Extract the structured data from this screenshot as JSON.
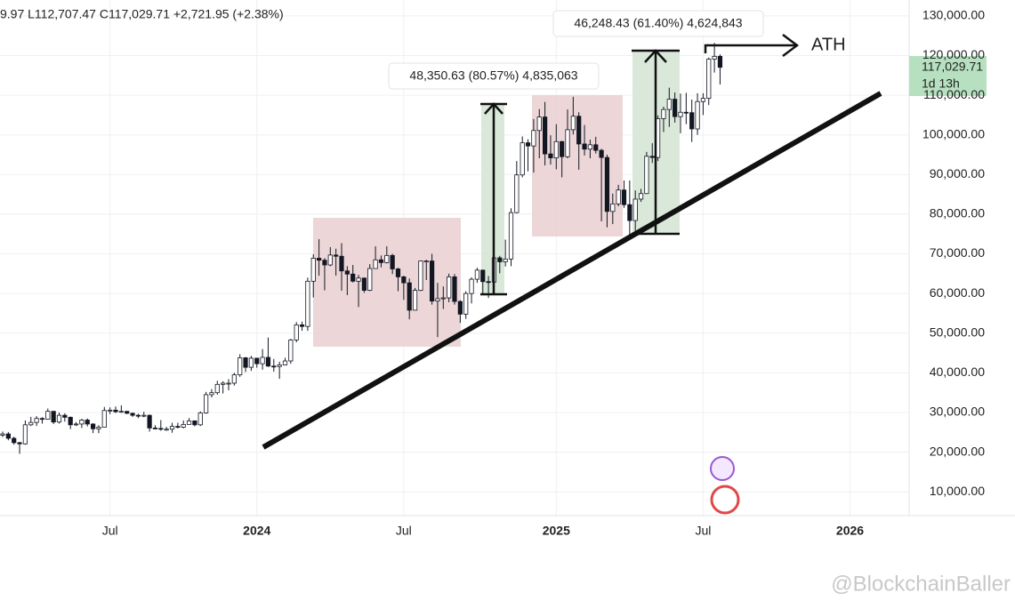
{
  "chart_data": {
    "type": "candlestick",
    "header": "9.97 L112,707.47 C117,029.71 +2,721.95 (+2.38%)",
    "categories": [
      null,
      null,
      null,
      null,
      null,
      null,
      null,
      null,
      null,
      null,
      null,
      null,
      null,
      null,
      null,
      null,
      null,
      null,
      null,
      "Jul",
      null,
      null,
      null,
      null,
      null,
      null,
      null,
      null,
      null,
      null,
      null,
      null,
      null,
      null,
      null,
      null,
      null,
      null,
      null,
      null,
      null,
      null,
      null,
      null,
      null,
      "2024",
      null,
      null,
      null,
      null,
      null,
      null,
      null,
      null,
      null,
      null,
      null,
      null,
      null,
      null,
      null,
      null,
      null,
      null,
      null,
      null,
      null,
      null,
      null,
      null,
      null,
      "Jul",
      null,
      null,
      null,
      null,
      null,
      null,
      null,
      null,
      null,
      null,
      null,
      null,
      null,
      null,
      null,
      null,
      null,
      null,
      null,
      null,
      null,
      null,
      null,
      null,
      null,
      null,
      "2025",
      null,
      null,
      null,
      null,
      null,
      null,
      null,
      null,
      null,
      null,
      null,
      null,
      null,
      null,
      null,
      null,
      null,
      null,
      null,
      null,
      null,
      null,
      null,
      null,
      null,
      "Jul",
      null,
      null,
      null,
      null,
      null,
      null,
      null,
      null,
      null,
      null,
      null,
      null,
      null,
      null,
      null,
      null,
      null,
      null,
      null,
      null,
      null,
      null,
      null,
      null,
      null,
      "2026",
      null,
      null,
      null,
      null,
      null,
      null,
      null,
      null,
      null,
      null
    ],
    "open": [
      24300,
      24600,
      23500,
      22400,
      22100,
      26900,
      27500,
      28500,
      28300,
      30300,
      27600,
      29300,
      28800,
      26900,
      27100,
      28100,
      27100,
      25900,
      26300,
      30500,
      30600,
      30200,
      30300,
      29800,
      29300,
      29100,
      29300,
      26100,
      26000,
      25800,
      25800,
      26500,
      26300,
      27000,
      27900,
      26900,
      29900,
      34500,
      35000,
      37100,
      37400,
      37400,
      39500,
      43800,
      41400,
      43700,
      42300,
      43900,
      41700,
      41600,
      42000,
      43000,
      48300,
      52100,
      51700,
      63100,
      68900,
      68400,
      67200,
      69700,
      69400,
      65700,
      64900,
      63100,
      63900,
      60800,
      66300,
      68500,
      67800,
      69600,
      66200,
      64200,
      62700,
      55800,
      60800,
      68200,
      68200,
      58100,
      58700,
      58900,
      64200,
      58000,
      54800,
      60000,
      63600,
      65900,
      63000,
      62900,
      69000,
      68000,
      68700,
      80400,
      89900,
      98000,
      97200,
      101100,
      104500,
      95200,
      94200,
      98300,
      94500,
      101300,
      104700,
      97700,
      96400,
      97500,
      96100,
      94300,
      80700,
      82600,
      86100,
      82400,
      78400,
      83800,
      85200,
      94600,
      94300,
      104100,
      106400,
      109000,
      104600,
      105700,
      105600,
      101500,
      108400,
      109200,
      119100,
      119800,
      null,
      null,
      null,
      null,
      null,
      null,
      null,
      null,
      null,
      null,
      null,
      null,
      null,
      null,
      null,
      null,
      null,
      null,
      null,
      null,
      null,
      null,
      null,
      null,
      null,
      null,
      null,
      null,
      null,
      null,
      null,
      null,
      null
    ],
    "high": [
      25200,
      25100,
      23900,
      22600,
      28000,
      28900,
      29100,
      28800,
      31000,
      30400,
      30000,
      29800,
      29000,
      27600,
      28400,
      28500,
      27300,
      26800,
      31400,
      31300,
      31500,
      31800,
      30400,
      30000,
      29700,
      30200,
      29500,
      26800,
      28100,
      26400,
      27400,
      27400,
      28000,
      28600,
      28000,
      30300,
      35200,
      35900,
      38000,
      37900,
      38400,
      40000,
      44700,
      44000,
      44300,
      43700,
      46000,
      48900,
      43500,
      42800,
      43800,
      48600,
      52800,
      52900,
      64000,
      69900,
      73700,
      68900,
      71700,
      71300,
      72700,
      66900,
      67200,
      64700,
      64000,
      67400,
      71900,
      69600,
      71900,
      70000,
      66500,
      64500,
      63800,
      61400,
      68300,
      68500,
      70000,
      62700,
      61800,
      65000,
      64900,
      58300,
      60600,
      64100,
      66500,
      66000,
      64400,
      69500,
      69500,
      73600,
      81500,
      93400,
      99600,
      98900,
      104000,
      106500,
      108300,
      99900,
      102700,
      98500,
      106400,
      109600,
      105700,
      102500,
      98800,
      99500,
      96500,
      95000,
      85200,
      87400,
      88500,
      88500,
      86000,
      86400,
      95700,
      97900,
      104900,
      107100,
      111900,
      110700,
      110400,
      110600,
      108900,
      110500,
      110500,
      119500,
      123200,
      120300,
      null,
      null,
      null,
      null,
      null,
      null,
      null,
      null,
      null,
      null,
      null,
      null,
      null,
      null,
      null,
      null,
      null,
      null,
      null,
      null,
      null,
      null,
      null,
      null,
      null,
      null,
      null,
      null,
      null,
      null,
      null,
      null,
      null
    ],
    "low": [
      23800,
      23000,
      21900,
      19600,
      21900,
      26600,
      26600,
      27200,
      28200,
      27100,
      27200,
      27700,
      25800,
      26600,
      26100,
      26500,
      24800,
      24800,
      26300,
      29600,
      29900,
      29900,
      29600,
      28900,
      28600,
      28800,
      25200,
      25800,
      25400,
      25400,
      24900,
      26000,
      26000,
      27000,
      26500,
      26600,
      29700,
      33800,
      34500,
      34800,
      35600,
      36800,
      39000,
      40200,
      40500,
      41300,
      40800,
      41500,
      40300,
      38500,
      41900,
      42300,
      47700,
      50600,
      50600,
      59000,
      64500,
      60800,
      66900,
      64500,
      60700,
      59600,
      62800,
      56600,
      60200,
      60600,
      66300,
      66600,
      67600,
      64900,
      60600,
      58400,
      53500,
      56000,
      60600,
      63400,
      57200,
      49000,
      56100,
      57800,
      57200,
      52600,
      53600,
      57500,
      62700,
      59800,
      58900,
      62400,
      65100,
      66800,
      66900,
      80200,
      89300,
      90800,
      90500,
      94100,
      92300,
      92500,
      91300,
      89300,
      94100,
      100100,
      91200,
      94800,
      94100,
      95300,
      78200,
      76700,
      77500,
      82000,
      81600,
      74500,
      74400,
      83100,
      85100,
      92900,
      93400,
      100700,
      102000,
      103100,
      100400,
      102700,
      98200,
      100000,
      105000,
      107500,
      115700,
      112707.47,
      null,
      null,
      null,
      null,
      null,
      null,
      null,
      null,
      null,
      null,
      null,
      null,
      null,
      null,
      null,
      null,
      null,
      null,
      null,
      null,
      null,
      null,
      null,
      null,
      null,
      null,
      null,
      null,
      null,
      null,
      null,
      null,
      null
    ],
    "close": [
      24600,
      23500,
      22400,
      22100,
      26900,
      27500,
      28500,
      28300,
      30300,
      27600,
      29300,
      28800,
      26900,
      27100,
      28100,
      27100,
      25900,
      26300,
      30500,
      30600,
      30200,
      30300,
      29800,
      29300,
      29100,
      29300,
      26100,
      26000,
      25800,
      25800,
      26500,
      26300,
      27000,
      27900,
      26900,
      29900,
      34500,
      35000,
      37100,
      37400,
      37400,
      39500,
      43800,
      41400,
      43700,
      42300,
      43900,
      41700,
      41600,
      42000,
      43000,
      48300,
      52100,
      51700,
      63100,
      68900,
      68400,
      67200,
      69700,
      69400,
      65700,
      64900,
      63100,
      63900,
      60800,
      66300,
      68500,
      67800,
      69600,
      66200,
      64200,
      62700,
      55800,
      60800,
      68200,
      68200,
      58100,
      58700,
      58900,
      64200,
      58000,
      54800,
      60000,
      63600,
      65900,
      63000,
      62900,
      69000,
      68000,
      68700,
      80400,
      89900,
      98000,
      97200,
      101100,
      104500,
      95200,
      94200,
      98300,
      94500,
      101300,
      104700,
      97700,
      96400,
      97500,
      96100,
      94300,
      80700,
      82600,
      86100,
      82400,
      78400,
      83800,
      85200,
      94600,
      94300,
      104100,
      106400,
      109000,
      104600,
      105700,
      105600,
      101500,
      108400,
      109200,
      119100,
      119800,
      117029.71,
      null,
      null,
      null,
      null,
      null,
      null,
      null,
      null,
      null,
      null,
      null,
      null,
      null,
      null,
      null,
      null,
      null,
      null,
      null,
      null,
      null,
      null,
      null,
      null,
      null,
      null,
      null,
      null,
      null,
      null,
      null,
      null,
      null
    ],
    "up_color": "#ffffff",
    "down_color": "#131722",
    "ylim": [
      4000,
      134000
    ],
    "yticks": [
      {
        "value": 10000,
        "label": "10,000.00"
      },
      {
        "value": 20000,
        "label": "20,000.00"
      },
      {
        "value": 30000,
        "label": "30,000.00"
      },
      {
        "value": 40000,
        "label": "40,000.00"
      },
      {
        "value": 50000,
        "label": "50,000.00"
      },
      {
        "value": 60000,
        "label": "60,000.00"
      },
      {
        "value": 70000,
        "label": "70,000.00"
      },
      {
        "value": 80000,
        "label": "80,000.00"
      },
      {
        "value": 90000,
        "label": "90,000.00"
      },
      {
        "value": 100000,
        "label": "100,000.00"
      },
      {
        "value": 110000,
        "label": "110,000.00"
      },
      {
        "value": 120000,
        "label": "120,000.00"
      },
      {
        "value": 130000,
        "label": "130,000.00"
      }
    ],
    "grid": true,
    "annotations": {
      "move_1": "48,350.63 (80.57%) 4,835,063",
      "move_2": "46,248.43 (61.40%) 4,624,843",
      "ath": "ATH",
      "last_price": "117,029.71",
      "countdown": "1d 13h"
    },
    "watermark": "@BlockchainBaller"
  }
}
